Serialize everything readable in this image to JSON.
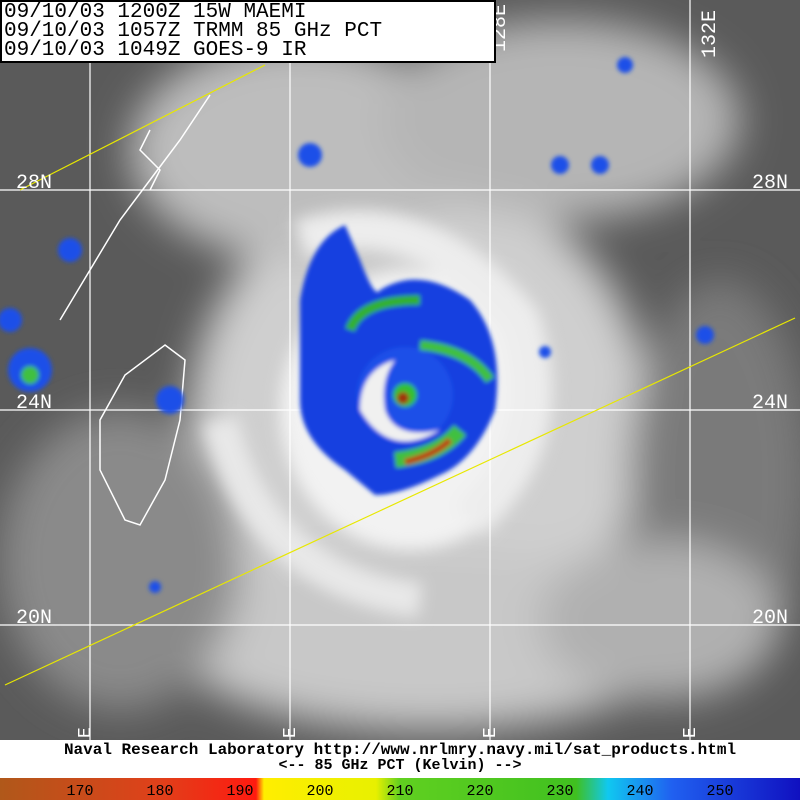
{
  "header": {
    "lines": [
      "09/10/03 1200Z  15W MAEMI",
      "09/10/03 1057Z  TRMM 85 GHz PCT",
      "09/10/03 1049Z  GOES-9 IR"
    ]
  },
  "map": {
    "lat_labels": [
      "28N",
      "24N",
      "20N"
    ],
    "lon_labels_top": [
      "128E",
      "132E"
    ],
    "lon_labels_bottom": [
      "E",
      "E",
      "E",
      "E"
    ]
  },
  "footer": {
    "credit": "Naval Research Laboratory  http://www.nrlmry.navy.mil/sat_products.html",
    "scale_title": "<--  85 GHz PCT (Kelvin)  -->"
  },
  "colorbar": {
    "ticks": [
      170,
      180,
      190,
      200,
      210,
      220,
      230,
      240,
      250
    ]
  }
}
